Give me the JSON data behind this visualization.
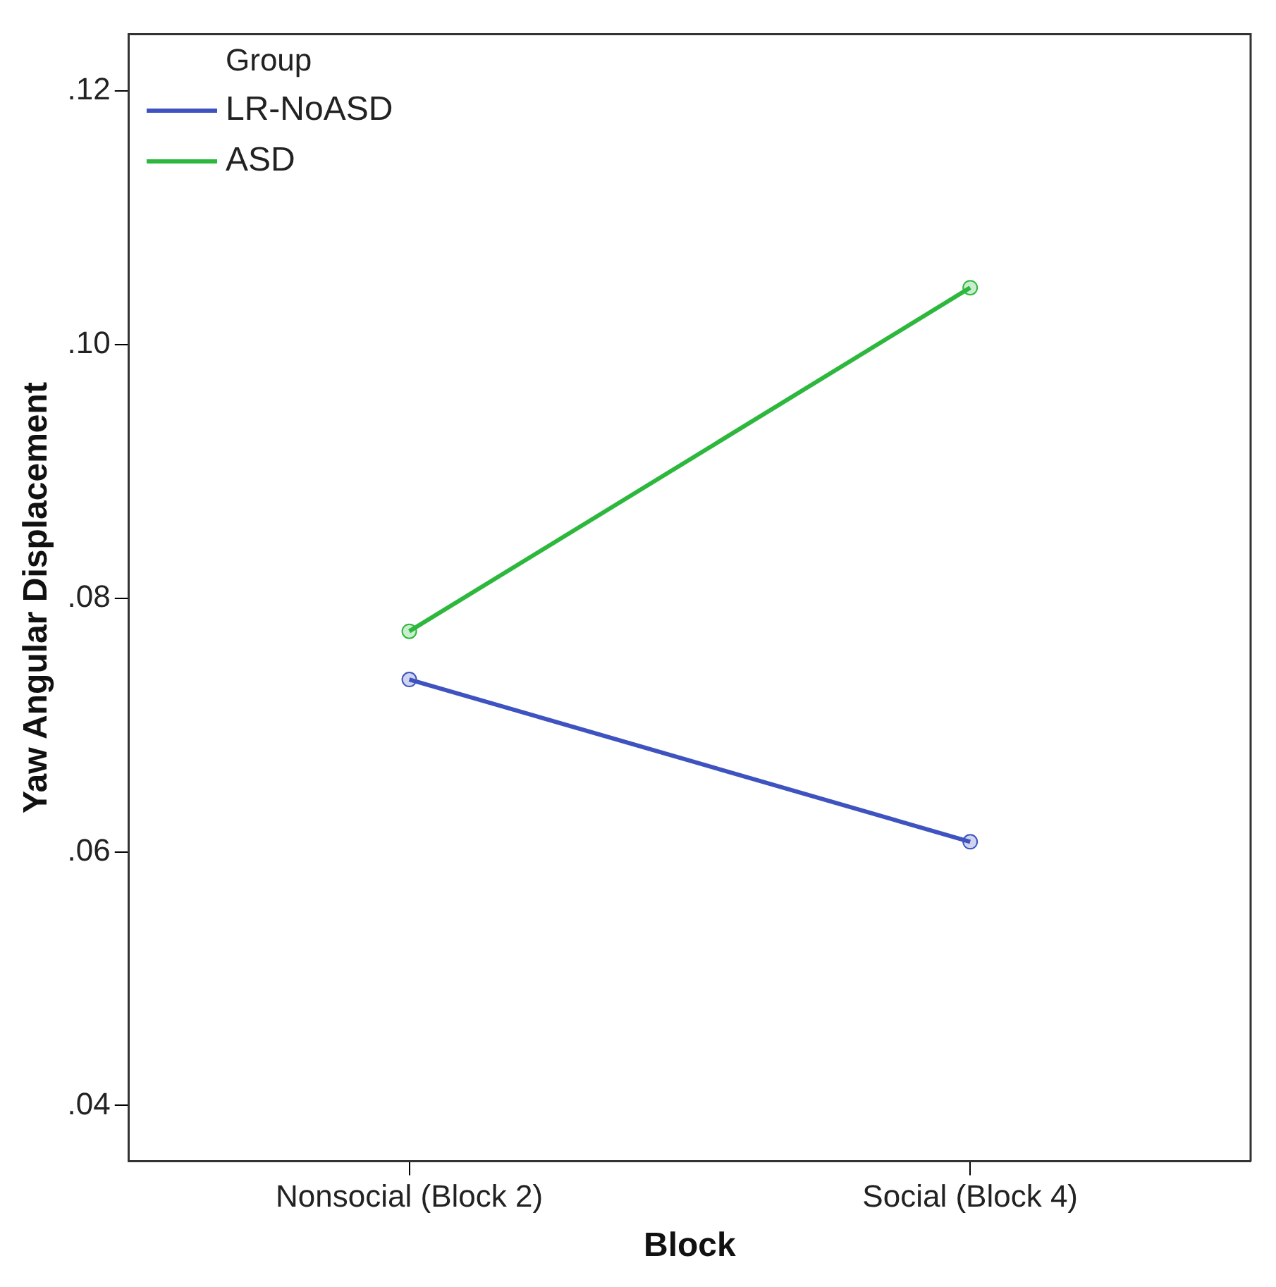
{
  "chart_data": {
    "type": "line",
    "xlabel": "Block",
    "ylabel": "Yaw Angular Displacement",
    "legend_title": "Group",
    "categories": [
      "Nonsocial (Block 2)",
      "Social (Block 4)"
    ],
    "series": [
      {
        "name": "LR-NoASD",
        "color": "#3e53c0",
        "values": [
          0.0736,
          0.0608
        ]
      },
      {
        "name": "ASD",
        "color": "#2db83d",
        "values": [
          0.0774,
          0.1045
        ]
      }
    ],
    "ylim": [
      0.0356,
      0.1245
    ],
    "yticks": [
      {
        "value": 0.04,
        "label": ".04"
      },
      {
        "value": 0.06,
        "label": ".06"
      },
      {
        "value": 0.08,
        "label": ".08"
      },
      {
        "value": 0.1,
        "label": ".10"
      },
      {
        "value": 0.12,
        "label": ".12"
      }
    ],
    "grid": false,
    "legend": "top left",
    "marker": "circle",
    "line_style": "solid"
  }
}
